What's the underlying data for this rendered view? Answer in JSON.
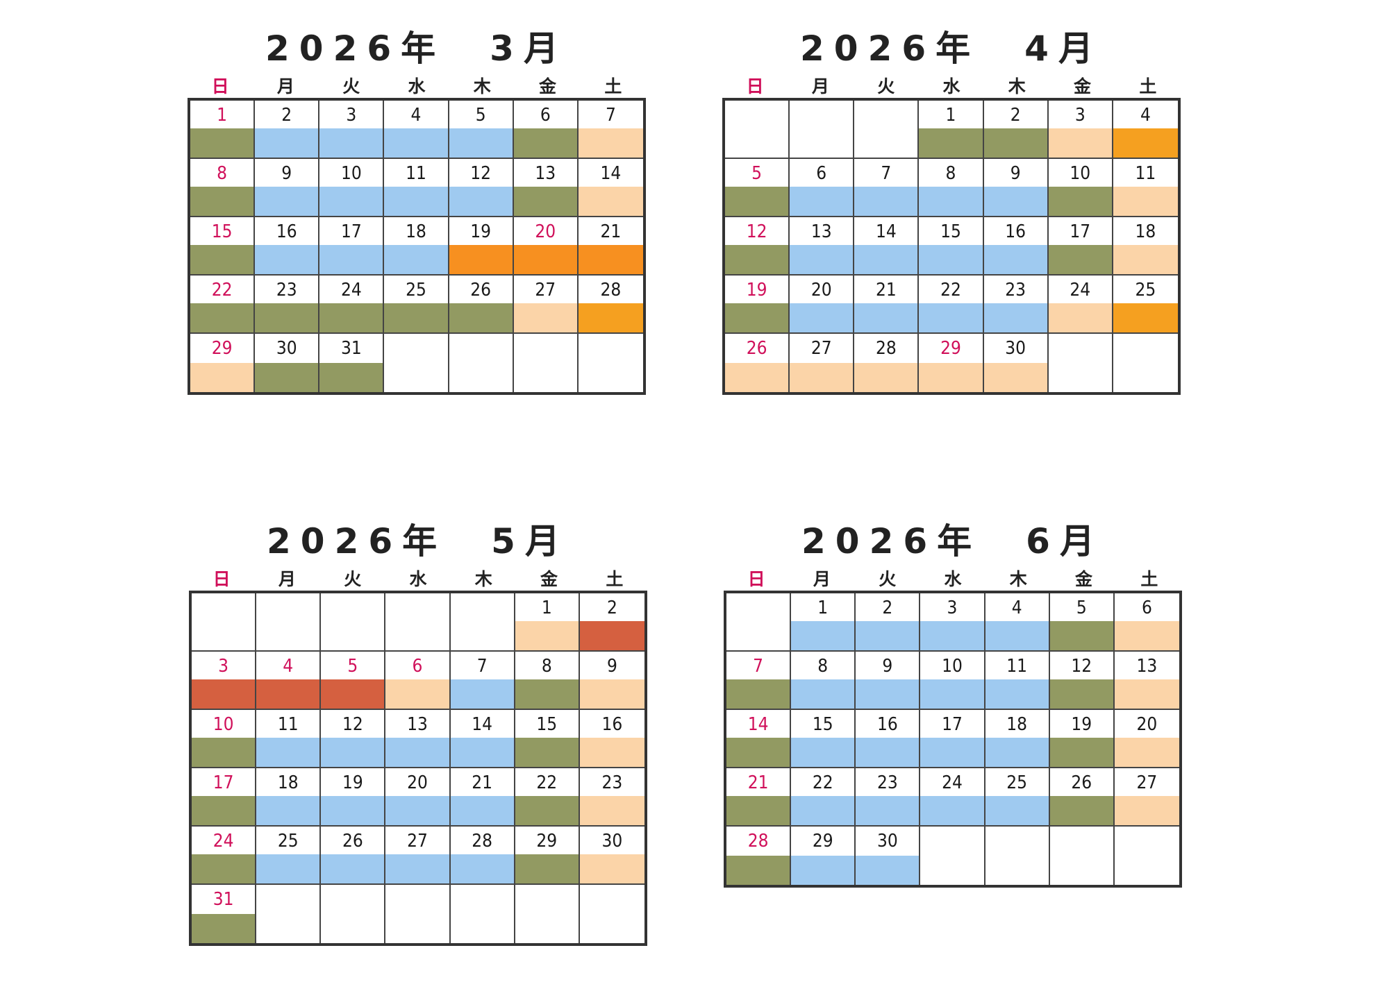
{
  "colors": {
    "g": "#929a62",
    "b": "#9fcaf0",
    "p": "#fbd4a8",
    "o": "#f5a020",
    "r": "#d56040",
    "or": "#f79020",
    "holiday": "#d0105a"
  },
  "weekdays": [
    "日",
    "月",
    "火",
    "水",
    "木",
    "金",
    "土"
  ],
  "calendars": [
    {
      "title": "2026年　3月",
      "start_weekday": 0,
      "days": 31,
      "holidays": [
        1,
        8,
        15,
        20,
        22,
        29
      ],
      "bands": [
        "g",
        "b",
        "b",
        "b",
        "b",
        "g",
        "p",
        "g",
        "b",
        "b",
        "b",
        "b",
        "g",
        "p",
        "g",
        "b",
        "b",
        "b",
        "or",
        "or",
        "or",
        "g",
        "g",
        "g",
        "g",
        "g",
        "p",
        "o",
        "p",
        "g",
        "g"
      ]
    },
    {
      "title": "2026年　4月",
      "start_weekday": 3,
      "days": 30,
      "holidays": [
        5,
        12,
        19,
        26,
        29
      ],
      "bands": [
        "g",
        "g",
        "p",
        "o",
        "g",
        "b",
        "b",
        "b",
        "b",
        "g",
        "p",
        "g",
        "b",
        "b",
        "b",
        "b",
        "g",
        "p",
        "g",
        "b",
        "b",
        "b",
        "b",
        "p",
        "o",
        "p",
        "p",
        "p",
        "p",
        "p"
      ]
    },
    {
      "title": "2026年　5月",
      "start_weekday": 5,
      "days": 31,
      "holidays": [
        3,
        4,
        5,
        6,
        10,
        17,
        24,
        31
      ],
      "bands": [
        "p",
        "r",
        "r",
        "r",
        "r",
        "p",
        "b",
        "g",
        "p",
        "g",
        "b",
        "b",
        "b",
        "b",
        "g",
        "p",
        "g",
        "b",
        "b",
        "b",
        "b",
        "g",
        "p",
        "g",
        "b",
        "b",
        "b",
        "b",
        "g",
        "p",
        "g"
      ]
    },
    {
      "title": "2026年　6月",
      "start_weekday": 1,
      "days": 30,
      "holidays": [
        7,
        14,
        21,
        28
      ],
      "bands": [
        "b",
        "b",
        "b",
        "b",
        "g",
        "p",
        "g",
        "b",
        "b",
        "b",
        "b",
        "g",
        "p",
        "g",
        "b",
        "b",
        "b",
        "b",
        "g",
        "p",
        "g",
        "b",
        "b",
        "b",
        "b",
        "g",
        "p",
        "g",
        "b",
        "b"
      ]
    }
  ]
}
